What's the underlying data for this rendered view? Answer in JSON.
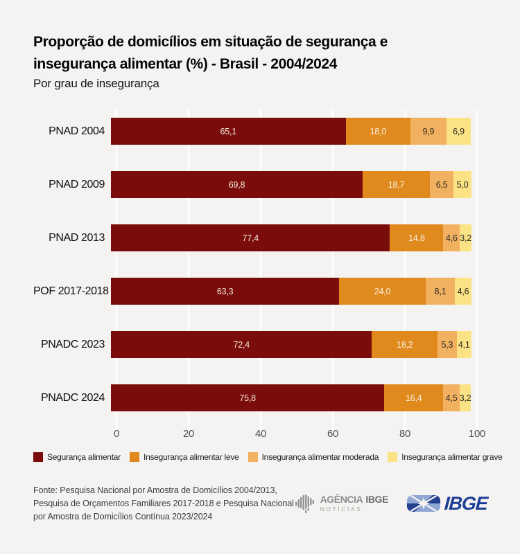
{
  "page": {
    "background": "#f5f3f1"
  },
  "header": {
    "title_line1": "Proporção de domicílios em situação de segurança e",
    "title_line2": "insegurança alimentar (%) - Brasil - 2004/2024",
    "subtitle": "Por grau de insegurança"
  },
  "chart_data": {
    "type": "bar",
    "orientation": "horizontal",
    "stacked": true,
    "title": "Proporção de domicílios em situação de segurança e insegurança alimentar (%) - Brasil - 2004/2024",
    "subtitle": "Por grau de insegurança",
    "categories": [
      "PNAD 2004",
      "PNAD 2009",
      "PNAD 2013",
      "POF 2017-2018",
      "PNADC 2023",
      "PNADC 2024"
    ],
    "series": [
      {
        "name": "Segurança alimentar",
        "color": "#7a0d0b",
        "label_color": "#f2e9da",
        "values": [
          65.1,
          69.8,
          77.4,
          63.3,
          72.4,
          75.8
        ]
      },
      {
        "name": "Insegurança alimentar leve",
        "color": "#e0891c",
        "label_color": "#f8f0e1",
        "values": [
          18.0,
          18.7,
          14.8,
          24.0,
          18.2,
          16.4
        ]
      },
      {
        "name": "Insegurança alimentar moderada",
        "color": "#f1b161",
        "label_color": "#2f2a20",
        "values": [
          9.9,
          6.5,
          4.6,
          8.1,
          5.3,
          4.5
        ]
      },
      {
        "name": "Insegurança alimentar grave",
        "color": "#fae285",
        "label_color": "#2f2a20",
        "values": [
          6.9,
          5.0,
          3.2,
          4.6,
          4.1,
          3.2
        ]
      }
    ],
    "x_ticks": [
      0,
      20,
      40,
      60,
      80,
      100
    ],
    "xlim": [
      0,
      100
    ],
    "decimal_separator": ",",
    "grid": "vertical white gridlines",
    "legend_position": "bottom"
  },
  "footer": {
    "source": "Fonte: Pesquisa Nacional por Amostra de Domicílios 2004/2013, Pesquisa de Orçamentos Familiares 2017-2018 e Pesquisa Nacional por Amostra de Domicílios Contínua 2023/2024",
    "agency_logo": {
      "name": "AGÊNCIA",
      "brand": "IBGE",
      "sub": "NOTÍCIAS"
    },
    "ibge_logo": {
      "brand": "IBGE"
    }
  }
}
